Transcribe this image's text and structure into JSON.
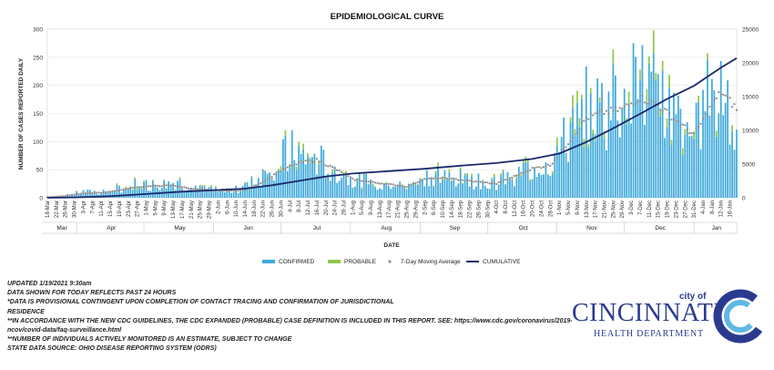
{
  "chart_data": {
    "type": "bar",
    "title": "EPIDEMIOLOGICAL CURVE",
    "xlabel": "DATE",
    "ylabel": "NUMBER OF CASES REPORTED DAILY",
    "ylim": [
      0,
      300
    ],
    "y2lim": [
      0,
      25000
    ],
    "yticks": [
      "0",
      "50",
      "100",
      "150",
      "200",
      "250",
      "300"
    ],
    "y2ticks": [
      "0",
      "5000",
      "10000",
      "15000",
      "20000",
      "25000"
    ],
    "x_tick_labels": [
      "18-Mar",
      "22-Mar",
      "26-Mar",
      "30-Mar",
      "3-Apr",
      "7-Apr",
      "11-Apr",
      "15-Apr",
      "19-Apr",
      "23-Apr",
      "27-Apr",
      "1-May",
      "5-May",
      "9-May",
      "13-May",
      "17-May",
      "21-May",
      "25-May",
      "29-May",
      "2-Jun",
      "6-Jun",
      "10-Jun",
      "14-Jun",
      "18-Jun",
      "22-Jun",
      "26-Jun",
      "30-Jun",
      "4-Jul",
      "8-Jul",
      "12-Jul",
      "16-Jul",
      "20-Jul",
      "24-Jul",
      "28-Jul",
      "1-Aug",
      "5-Aug",
      "9-Aug",
      "13-Aug",
      "17-Aug",
      "21-Aug",
      "25-Aug",
      "29-Aug",
      "2-Sep",
      "6-Sep",
      "10-Sep",
      "14-Sep",
      "18-Sep",
      "22-Sep",
      "26-Sep",
      "30-Sep",
      "4-Oct",
      "8-Oct",
      "12-Oct",
      "16-Oct",
      "20-Oct",
      "24-Oct",
      "28-Oct",
      "1-Nov",
      "5-Nov",
      "9-Nov",
      "13-Nov",
      "17-Nov",
      "21-Nov",
      "25-Nov",
      "29-Nov",
      "3-Dec",
      "7-Dec",
      "11-Dec",
      "15-Dec",
      "19-Dec",
      "23-Dec",
      "27-Dec",
      "31-Dec",
      "4-Jan",
      "8-Jan",
      "12-Jan",
      "16-Jan"
    ],
    "months": [
      "Mar",
      "Apr",
      "May",
      "Jun",
      "Jul",
      "Aug",
      "Sep",
      "Oct",
      "Nov",
      "Dec",
      "Jan"
    ],
    "legend": [
      "CONFIRMED",
      "PROBABLE",
      "7-Day Moving Average",
      "CUMULATIVE"
    ],
    "legend_position": "bottom",
    "colors": {
      "confirmed": "#3fa9dc",
      "probable": "#8fc84a",
      "moving_avg": "#8a8a8a",
      "cumulative": "#1a2a6c"
    },
    "series": [
      {
        "name": "7-Day Moving Average",
        "axis": "left",
        "points": [
          [
            "18-Mar",
            1
          ],
          [
            "26-Mar",
            3
          ],
          [
            "3-Apr",
            8
          ],
          [
            "11-Apr",
            9
          ],
          [
            "19-Apr",
            13
          ],
          [
            "27-Apr",
            19
          ],
          [
            "5-May",
            21
          ],
          [
            "13-May",
            22
          ],
          [
            "21-May",
            16
          ],
          [
            "29-May",
            14
          ],
          [
            "6-Jun",
            12
          ],
          [
            "14-Jun",
            14
          ],
          [
            "22-Jun",
            28
          ],
          [
            "30-Jun",
            48
          ],
          [
            "8-Jul",
            62
          ],
          [
            "16-Jul",
            67
          ],
          [
            "24-Jul",
            52
          ],
          [
            "1-Aug",
            33
          ],
          [
            "9-Aug",
            28
          ],
          [
            "17-Aug",
            24
          ],
          [
            "25-Aug",
            20
          ],
          [
            "2-Sep",
            33
          ],
          [
            "10-Sep",
            35
          ],
          [
            "18-Sep",
            32
          ],
          [
            "26-Sep",
            28
          ],
          [
            "4-Oct",
            25
          ],
          [
            "12-Oct",
            38
          ],
          [
            "20-Oct",
            52
          ],
          [
            "28-Oct",
            58
          ],
          [
            "5-Nov",
            98
          ],
          [
            "13-Nov",
            142
          ],
          [
            "21-Nov",
            152
          ],
          [
            "29-Nov",
            158
          ],
          [
            "7-Dec",
            178
          ],
          [
            "15-Dec",
            165
          ],
          [
            "23-Dec",
            138
          ],
          [
            "31-Dec",
            112
          ],
          [
            "8-Jan",
            165
          ],
          [
            "12-Jan",
            188
          ],
          [
            "16-Jan",
            172
          ],
          [
            "19-Jan",
            158
          ]
        ]
      },
      {
        "name": "CUMULATIVE",
        "axis": "right",
        "points": [
          [
            "18-Mar",
            0
          ],
          [
            "30-Mar",
            60
          ],
          [
            "15-Apr",
            230
          ],
          [
            "1-May",
            550
          ],
          [
            "17-May",
            900
          ],
          [
            "2-Jun",
            1150
          ],
          [
            "14-Jun",
            1350
          ],
          [
            "26-Jun",
            1850
          ],
          [
            "8-Jul",
            2500
          ],
          [
            "20-Jul",
            3150
          ],
          [
            "1-Aug",
            3600
          ],
          [
            "17-Aug",
            3950
          ],
          [
            "2-Sep",
            4300
          ],
          [
            "18-Sep",
            4750
          ],
          [
            "4-Oct",
            5150
          ],
          [
            "20-Oct",
            5750
          ],
          [
            "1-Nov",
            6550
          ],
          [
            "13-Nov",
            8250
          ],
          [
            "25-Nov",
            10300
          ],
          [
            "7-Dec",
            12450
          ],
          [
            "19-Dec",
            14650
          ],
          [
            "31-Dec",
            16600
          ],
          [
            "12-Jan",
            19300
          ],
          [
            "19-Jan",
            20700
          ]
        ]
      }
    ],
    "daily_cases_shape": [
      [
        "18-Mar",
        1
      ],
      [
        "26-Mar",
        4
      ],
      [
        "3-Apr",
        12
      ],
      [
        "11-Apr",
        10
      ],
      [
        "19-Apr",
        18
      ],
      [
        "27-Apr",
        28
      ],
      [
        "5-May",
        25
      ],
      [
        "13-May",
        30
      ],
      [
        "21-May",
        18
      ],
      [
        "29-May",
        15
      ],
      [
        "6-Jun",
        12
      ],
      [
        "14-Jun",
        20
      ],
      [
        "22-Jun",
        45
      ],
      [
        "30-Jun",
        75
      ],
      [
        "4-Jul",
        95
      ],
      [
        "8-Jul",
        80
      ],
      [
        "16-Jul",
        78
      ],
      [
        "24-Jul",
        55
      ],
      [
        "1-Aug",
        38
      ],
      [
        "9-Aug",
        32
      ],
      [
        "17-Aug",
        28
      ],
      [
        "25-Aug",
        22
      ],
      [
        "2-Sep",
        45
      ],
      [
        "10-Sep",
        40
      ],
      [
        "18-Sep",
        38
      ],
      [
        "26-Sep",
        32
      ],
      [
        "4-Oct",
        30
      ],
      [
        "12-Oct",
        45
      ],
      [
        "20-Oct",
        60
      ],
      [
        "28-Oct",
        75
      ],
      [
        "5-Nov",
        125
      ],
      [
        "13-Nov",
        175
      ],
      [
        "21-Nov",
        185
      ],
      [
        "29-Nov",
        195
      ],
      [
        "7-Dec",
        215
      ],
      [
        "15-Dec",
        195
      ],
      [
        "23-Dec",
        155
      ],
      [
        "31-Dec",
        120
      ],
      [
        "8-Jan",
        210
      ],
      [
        "12-Jan",
        230
      ],
      [
        "16-Jan",
        200
      ],
      [
        "19-Jan",
        110
      ]
    ]
  },
  "notes": [
    "UPDATED 1/19/2021 9:30am",
    "DATA SHOWN FOR TODAY REFLECTS PAST 24 HOURS",
    "*DATA IS PROVISIONAL CONTINGENT UPON COMPLETION OF CONTACT TRACING AND CONFIRMATION OF JURISDICTIONAL",
    "RESIDENCE",
    "**IN ACCORDANCE WITH THE NEW CDC GUIDELINES, THE CDC EXPANDED (PROBABLE) CASE DEFINITION IS INCLUDED IN THIS REPORT. SEE: https://www.cdc.gov/coronavirus/2019-",
    "ncov/covid-data/faq-surveillance.html",
    "**NUMBER OF INDIVIDUALS ACTIVELY MONITORED IS AN ESTIMATE, SUBJECT TO CHANGE",
    "STATE DATA SOURCE: OHIO DISEASE REPORTING SYSTEM (ODRS)"
  ],
  "logo": {
    "city_of": "city of",
    "name": "CINCINNATI",
    "department": "HEALTH DEPARTMENT",
    "brand_color": "#2a3b8f"
  }
}
